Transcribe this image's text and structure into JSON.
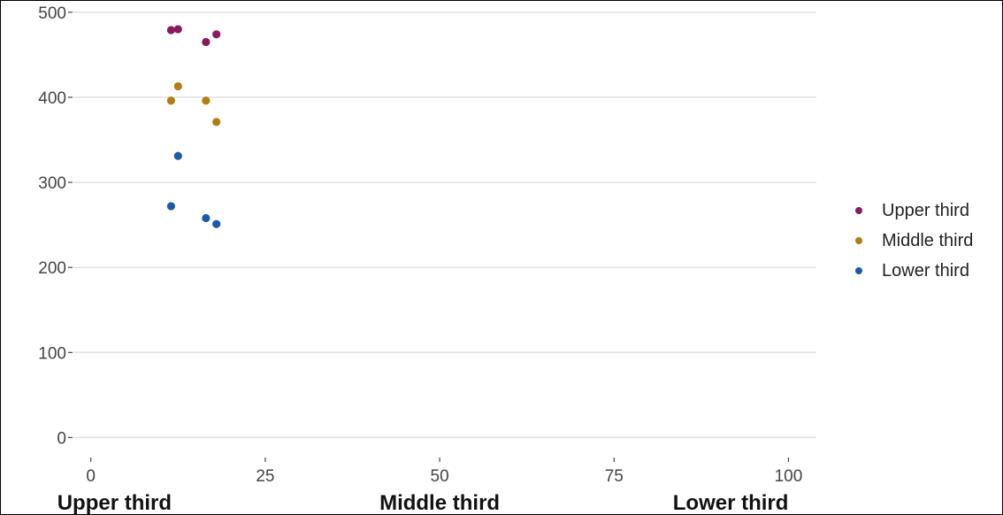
{
  "chart_data": {
    "type": "scatter",
    "title": "",
    "xlabel": "",
    "ylabel": "",
    "xlim": [
      -2.5,
      104
    ],
    "ylim": [
      -12,
      505
    ],
    "x_ticks": [
      0,
      25,
      50,
      75,
      100
    ],
    "x_tick_labels": [
      "0",
      "25",
      "50",
      "75",
      "100"
    ],
    "y_ticks": [
      0,
      100,
      200,
      300,
      400,
      500
    ],
    "y_tick_labels": [
      "0",
      "100",
      "200",
      "300",
      "400",
      "500"
    ],
    "x_category_labels": [
      {
        "text": "Upper third",
        "align": "start",
        "x": 0
      },
      {
        "text": "Middle third",
        "align": "middle",
        "x": 50
      },
      {
        "text": "Lower third",
        "align": "end",
        "x": 100
      }
    ],
    "grid": "horizontal",
    "legend_position": "right",
    "series": [
      {
        "name": "Upper third",
        "color": "#8B1A5C",
        "points": [
          [
            11.5,
            479
          ],
          [
            12.5,
            480
          ],
          [
            16.5,
            465
          ],
          [
            18,
            474
          ]
        ]
      },
      {
        "name": "Middle third",
        "color": "#B07E12",
        "points": [
          [
            11.5,
            396
          ],
          [
            12.5,
            413
          ],
          [
            16.5,
            396
          ],
          [
            18,
            371
          ]
        ]
      },
      {
        "name": "Lower third",
        "color": "#1B5BA8",
        "points": [
          [
            12.5,
            331
          ],
          [
            11.5,
            272
          ],
          [
            16.5,
            258
          ],
          [
            18,
            251
          ]
        ]
      }
    ]
  }
}
